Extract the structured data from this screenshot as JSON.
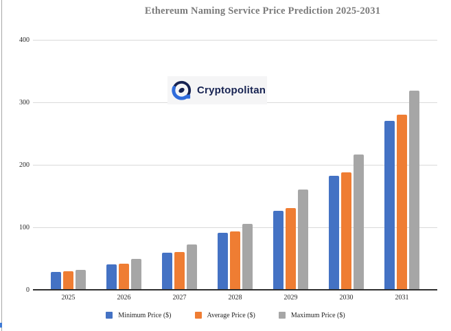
{
  "title": "Ethereum Naming Service Price Prediction 2025-2031",
  "watermark": {
    "brand": "Cryptopolitan"
  },
  "chart_data": {
    "type": "bar",
    "title": "Ethereum Naming Service Price Prediction 2025-2031",
    "categories": [
      "2025",
      "2026",
      "2027",
      "2028",
      "2029",
      "2030",
      "2031"
    ],
    "series": [
      {
        "key": "minimum-price",
        "name": "Minimum Price ($)",
        "color": "#4472C4",
        "values": [
          29,
          41,
          59,
          91,
          126,
          182,
          270
        ]
      },
      {
        "key": "average-price",
        "name": "Average Price ($)",
        "color": "#EF7D33",
        "values": [
          30,
          42,
          61,
          93,
          131,
          188,
          280
        ]
      },
      {
        "key": "maximum-price",
        "name": "Maximum Price ($)",
        "color": "#A6A6A6",
        "values": [
          32,
          50,
          72,
          106,
          160,
          217,
          319
        ]
      }
    ],
    "xlabel": "",
    "ylabel": "",
    "ylim": [
      0,
      400
    ],
    "yticks": [
      0,
      100,
      200,
      300,
      400
    ],
    "grid": true,
    "legend_position": "bottom"
  },
  "colors": {
    "grid": "#d9d9d9",
    "axis": "#2d2d2d",
    "title": "#7a7a7a",
    "tick_text": "#262626",
    "logo_navy": "#172352",
    "logo_blue": "#2f6bdb",
    "logo_bg": "#f5f5f6",
    "page_border": "#a6a6a6",
    "scroll_nub": "#3f7bd6"
  }
}
